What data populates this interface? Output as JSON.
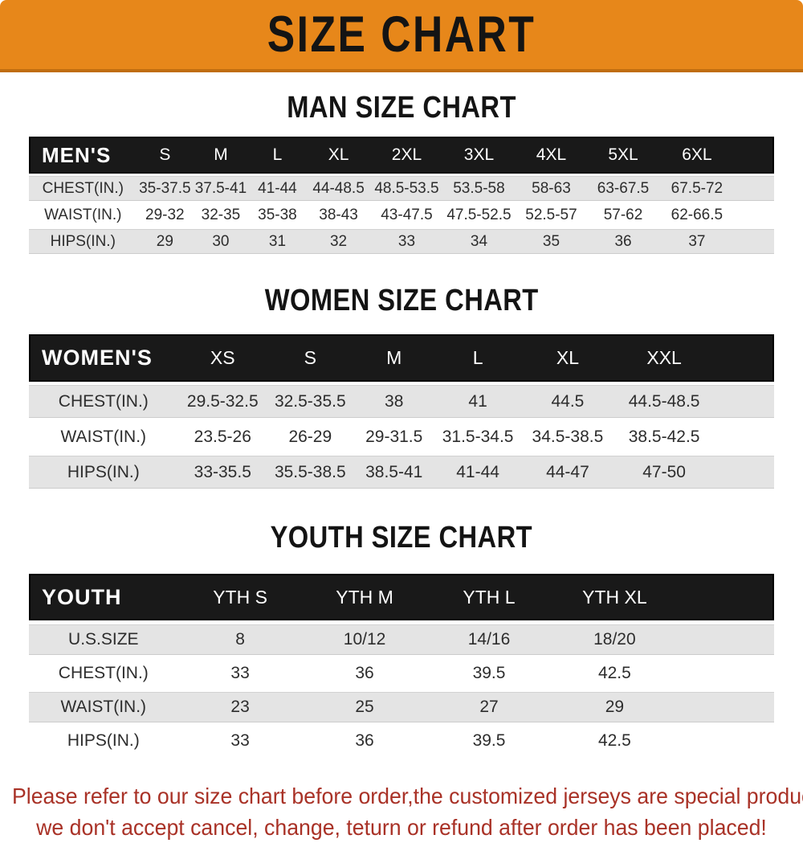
{
  "banner": {
    "title": "SIZE CHART"
  },
  "colors": {
    "banner_orange": "#e7871a",
    "header_black": "#191919",
    "row_gray": "#e4e4e4",
    "footer_red": "#a93227"
  },
  "sections": [
    {
      "title": "MAN SIZE CHART",
      "header_label": "MEN'S",
      "columns": [
        "S",
        "M",
        "L",
        "XL",
        "2XL",
        "3XL",
        "4XL",
        "5XL",
        "6XL"
      ],
      "rows": [
        {
          "label": "CHEST(IN.)",
          "values": [
            "35-37.5",
            "37.5-41",
            "41-44",
            "44-48.5",
            "48.5-53.5",
            "53.5-58",
            "58-63",
            "63-67.5",
            "67.5-72"
          ]
        },
        {
          "label": "WAIST(IN.)",
          "values": [
            "29-32",
            "32-35",
            "35-38",
            "38-43",
            "43-47.5",
            "47.5-52.5",
            "52.5-57",
            "57-62",
            "62-66.5"
          ]
        },
        {
          "label": "HIPS(IN.)",
          "values": [
            "29",
            "30",
            "31",
            "32",
            "33",
            "34",
            "35",
            "36",
            "37"
          ]
        }
      ]
    },
    {
      "title": "WOMEN SIZE CHART",
      "header_label": "WOMEN'S",
      "columns": [
        "XS",
        "S",
        "M",
        "L",
        "XL",
        "XXL"
      ],
      "rows": [
        {
          "label": "CHEST(IN.)",
          "values": [
            "29.5-32.5",
            "32.5-35.5",
            "38",
            "41",
            "44.5",
            "44.5-48.5"
          ]
        },
        {
          "label": "WAIST(IN.)",
          "values": [
            "23.5-26",
            "26-29",
            "29-31.5",
            "31.5-34.5",
            "34.5-38.5",
            "38.5-42.5"
          ]
        },
        {
          "label": "HIPS(IN.)",
          "values": [
            "33-35.5",
            "35.5-38.5",
            "38.5-41",
            "41-44",
            "44-47",
            "47-50"
          ]
        }
      ]
    },
    {
      "title": "YOUTH SIZE CHART",
      "header_label": "YOUTH",
      "columns": [
        "YTH S",
        "YTH M",
        "YTH L",
        "YTH XL"
      ],
      "rows": [
        {
          "label": "U.S.SIZE",
          "values": [
            "8",
            "10/12",
            "14/16",
            "18/20"
          ]
        },
        {
          "label": "CHEST(IN.)",
          "values": [
            "33",
            "36",
            "39.5",
            "42.5"
          ]
        },
        {
          "label": "WAIST(IN.)",
          "values": [
            "23",
            "25",
            "27",
            "29"
          ]
        },
        {
          "label": "HIPS(IN.)",
          "values": [
            "33",
            "36",
            "39.5",
            "42.5"
          ]
        }
      ]
    }
  ],
  "footer": {
    "line1": "Please refer to our size chart before order,the customized jerseys are special products,",
    "line2": "we don't accept cancel, change, teturn or refund after order has been placed!"
  }
}
